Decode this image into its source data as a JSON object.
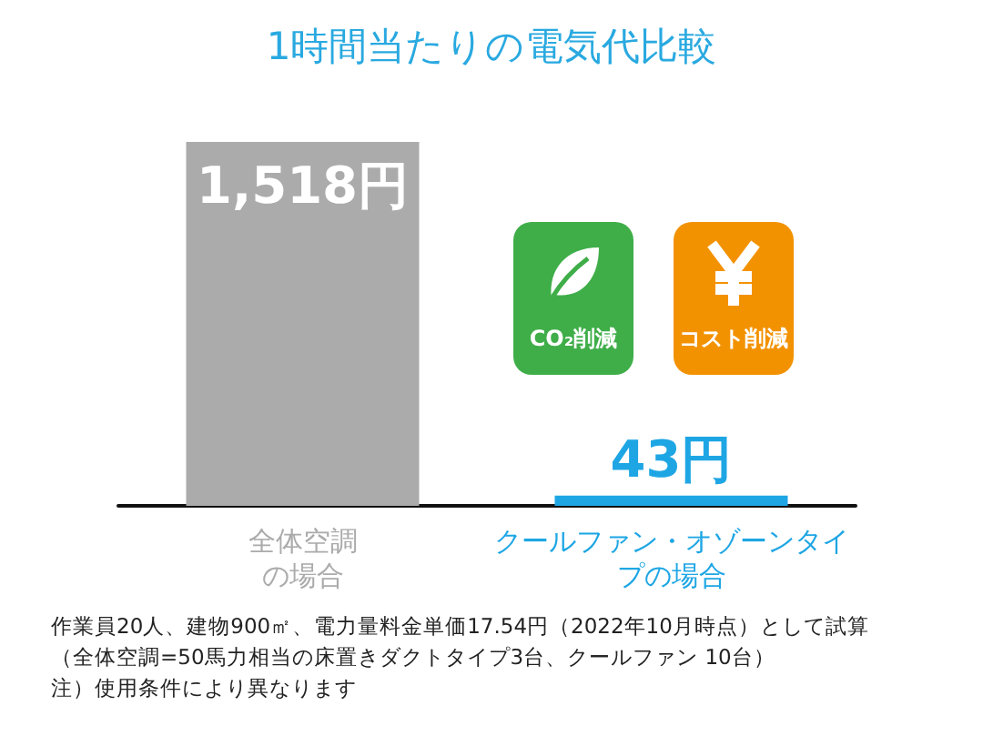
{
  "chart_data": {
    "type": "bar",
    "title": "1時間当たりの電気代比較",
    "categories": [
      "全体空調の場合",
      "クールファン・オゾーンタイプの場合"
    ],
    "values": [
      1518,
      43
    ],
    "colors": [
      "#ababab",
      "#1ea6e4"
    ],
    "value_labels": [
      "1,518円",
      "43円"
    ],
    "grid": false,
    "annotations": [
      "CO₂削減",
      "コスト削減",
      "作業員20人、建物900㎡、電力量料金単価17.54円（2022年10月時点）として試算",
      "（全体空調=50馬力相当の床置きダクトタイプ3台、クールファン 10台）",
      "注）使用条件により異なります"
    ]
  }
}
